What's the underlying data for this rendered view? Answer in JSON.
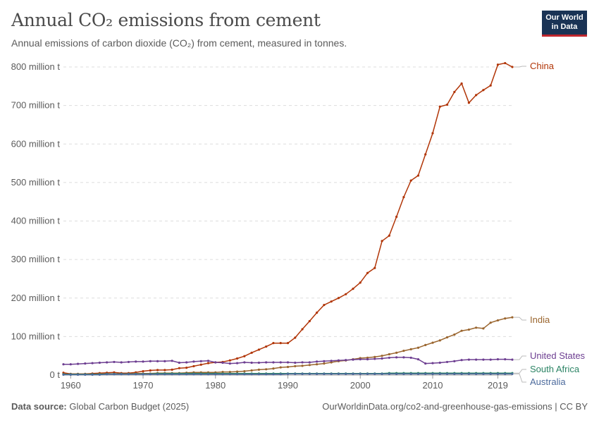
{
  "header": {
    "title": "Annual CO₂ emissions from cement",
    "subtitle": "Annual emissions of carbon dioxide (CO₂) from cement, measured in tonnes.",
    "logo_line1": "Our World",
    "logo_line2": "in Data"
  },
  "footer": {
    "source_label": "Data source:",
    "source_text": "Global Carbon Budget (2025)",
    "right_text": "OurWorldinData.org/co2-and-greenhouse-gas-emissions | CC BY"
  },
  "chart_data": {
    "type": "line",
    "title": "Annual CO₂ emissions from cement",
    "subtitle": "Annual emissions of carbon dioxide (CO₂) from cement, measured in tonnes.",
    "xlabel": "",
    "ylabel": "",
    "xlim": [
      1959,
      2021
    ],
    "ylim": [
      0,
      800
    ],
    "x_ticks": [
      "1960",
      "1970",
      "1980",
      "1990",
      "2000",
      "2010",
      "2019"
    ],
    "x_tick_values": [
      1960,
      1970,
      1980,
      1990,
      2000,
      2010,
      2019
    ],
    "y_ticks": [
      "0 t",
      "100 million t",
      "200 million t",
      "300 million t",
      "400 million t",
      "500 million t",
      "600 million t",
      "700 million t",
      "800 million t"
    ],
    "y_tick_values": [
      0,
      100,
      200,
      300,
      400,
      500,
      600,
      700,
      800
    ],
    "grid": "horizontal dashed",
    "legend": "labels at right end of lines",
    "x": [
      1959,
      1960,
      1961,
      1962,
      1963,
      1964,
      1965,
      1966,
      1967,
      1968,
      1969,
      1970,
      1971,
      1972,
      1973,
      1974,
      1975,
      1976,
      1977,
      1978,
      1979,
      1980,
      1981,
      1982,
      1983,
      1984,
      1985,
      1986,
      1987,
      1988,
      1989,
      1990,
      1991,
      1992,
      1993,
      1994,
      1995,
      1996,
      1997,
      1998,
      1999,
      2000,
      2001,
      2002,
      2003,
      2004,
      2005,
      2006,
      2007,
      2008,
      2009,
      2010,
      2011,
      2012,
      2013,
      2014,
      2015,
      2016,
      2017,
      2018,
      2019,
      2020,
      2021
    ],
    "series": [
      {
        "name": "China",
        "color": "#b13507",
        "values": [
          6,
          3,
          3,
          3,
          4,
          5,
          6,
          7,
          5,
          5,
          7,
          10,
          12,
          13,
          13,
          14,
          18,
          19,
          23,
          27,
          31,
          33,
          34,
          38,
          43,
          49,
          58,
          66,
          74,
          83,
          83,
          83,
          97,
          119,
          140,
          162,
          182,
          191,
          200,
          210,
          224,
          240,
          265,
          278,
          348,
          362,
          411,
          462,
          505,
          518,
          573,
          628,
          697,
          702,
          735,
          757,
          707,
          727,
          740,
          752,
          806,
          810,
          800
        ]
      },
      {
        "name": "India",
        "color": "#9a652e",
        "values": [
          2,
          2,
          2,
          2,
          2,
          3,
          3,
          3,
          3,
          3,
          4,
          4,
          4,
          5,
          5,
          5,
          5,
          6,
          7,
          7,
          7,
          7,
          8,
          8,
          9,
          10,
          12,
          14,
          15,
          17,
          20,
          21,
          23,
          24,
          26,
          28,
          30,
          33,
          36,
          38,
          41,
          44,
          45,
          47,
          50,
          54,
          58,
          63,
          67,
          71,
          78,
          84,
          90,
          98,
          105,
          115,
          118,
          123,
          121,
          136,
          142,
          147,
          150
        ]
      },
      {
        "name": "United States",
        "color": "#6d3e91",
        "values": [
          28,
          28,
          29,
          30,
          31,
          32,
          33,
          34,
          33,
          34,
          35,
          35,
          36,
          36,
          36,
          37,
          32,
          33,
          35,
          36,
          37,
          33,
          32,
          30,
          31,
          33,
          32,
          32,
          33,
          33,
          33,
          33,
          32,
          33,
          33,
          35,
          36,
          37,
          38,
          39,
          40,
          41,
          41,
          42,
          43,
          45,
          46,
          46,
          45,
          41,
          30,
          31,
          32,
          34,
          36,
          39,
          40,
          40,
          40,
          40,
          41,
          41,
          40
        ]
      },
      {
        "name": "South Africa",
        "color": "#2c8465",
        "values": [
          2,
          2,
          2,
          2,
          2,
          2,
          3,
          3,
          3,
          3,
          3,
          3,
          3,
          4,
          4,
          4,
          4,
          4,
          4,
          4,
          4,
          4,
          4,
          4,
          4,
          4,
          4,
          4,
          4,
          4,
          4,
          4,
          4,
          4,
          4,
          4,
          4,
          4,
          4,
          4,
          4,
          4,
          4,
          4,
          4,
          5,
          5,
          5,
          5,
          5,
          5,
          5,
          5,
          5,
          5,
          5,
          5,
          5,
          5,
          5,
          5,
          5,
          5
        ]
      },
      {
        "name": "Australia",
        "color": "#4c6a9c",
        "values": [
          1,
          1,
          1,
          1,
          1,
          1,
          2,
          2,
          2,
          2,
          2,
          2,
          2,
          2,
          2,
          2,
          2,
          2,
          2,
          2,
          2,
          2,
          2,
          2,
          2,
          2,
          2,
          2,
          2,
          2,
          2,
          3,
          3,
          3,
          3,
          3,
          3,
          3,
          3,
          3,
          3,
          3,
          3,
          3,
          3,
          3,
          3,
          3,
          3,
          3,
          3,
          3,
          3,
          3,
          3,
          3,
          3,
          3,
          3,
          3,
          3,
          3,
          3
        ]
      }
    ]
  }
}
